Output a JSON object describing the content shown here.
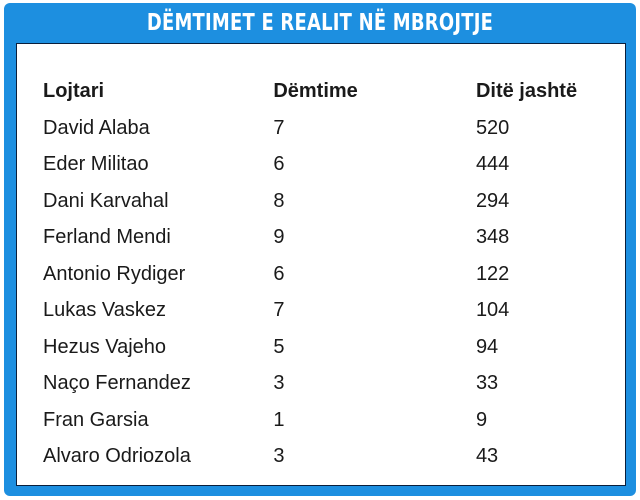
{
  "title": "DËMTIMET E REALIT NË MBROJTJE",
  "table": {
    "headers": [
      "Lojtari",
      "Dëmtime",
      "Ditë jashtë"
    ],
    "rows": [
      [
        "David Alaba",
        "7",
        "520"
      ],
      [
        "Eder Militao",
        "6",
        "444"
      ],
      [
        "Dani Karvahal",
        "8",
        "294"
      ],
      [
        "Ferland Mendi",
        "9",
        "348"
      ],
      [
        "Antonio Rydiger",
        "6",
        "122"
      ],
      [
        "Lukas Vaskez",
        "7",
        "104"
      ],
      [
        "Hezus Vajeho",
        "5",
        "94"
      ],
      [
        "Naço Fernandez",
        "3",
        "33"
      ],
      [
        "Fran Garsia",
        "1",
        "9"
      ],
      [
        "Alvaro Odriozola",
        "3",
        "43"
      ]
    ]
  },
  "colors": {
    "frame": "#1d8fe0",
    "title_text": "#ffffff",
    "panel": "#ffffff",
    "text": "#1a1a1a"
  }
}
